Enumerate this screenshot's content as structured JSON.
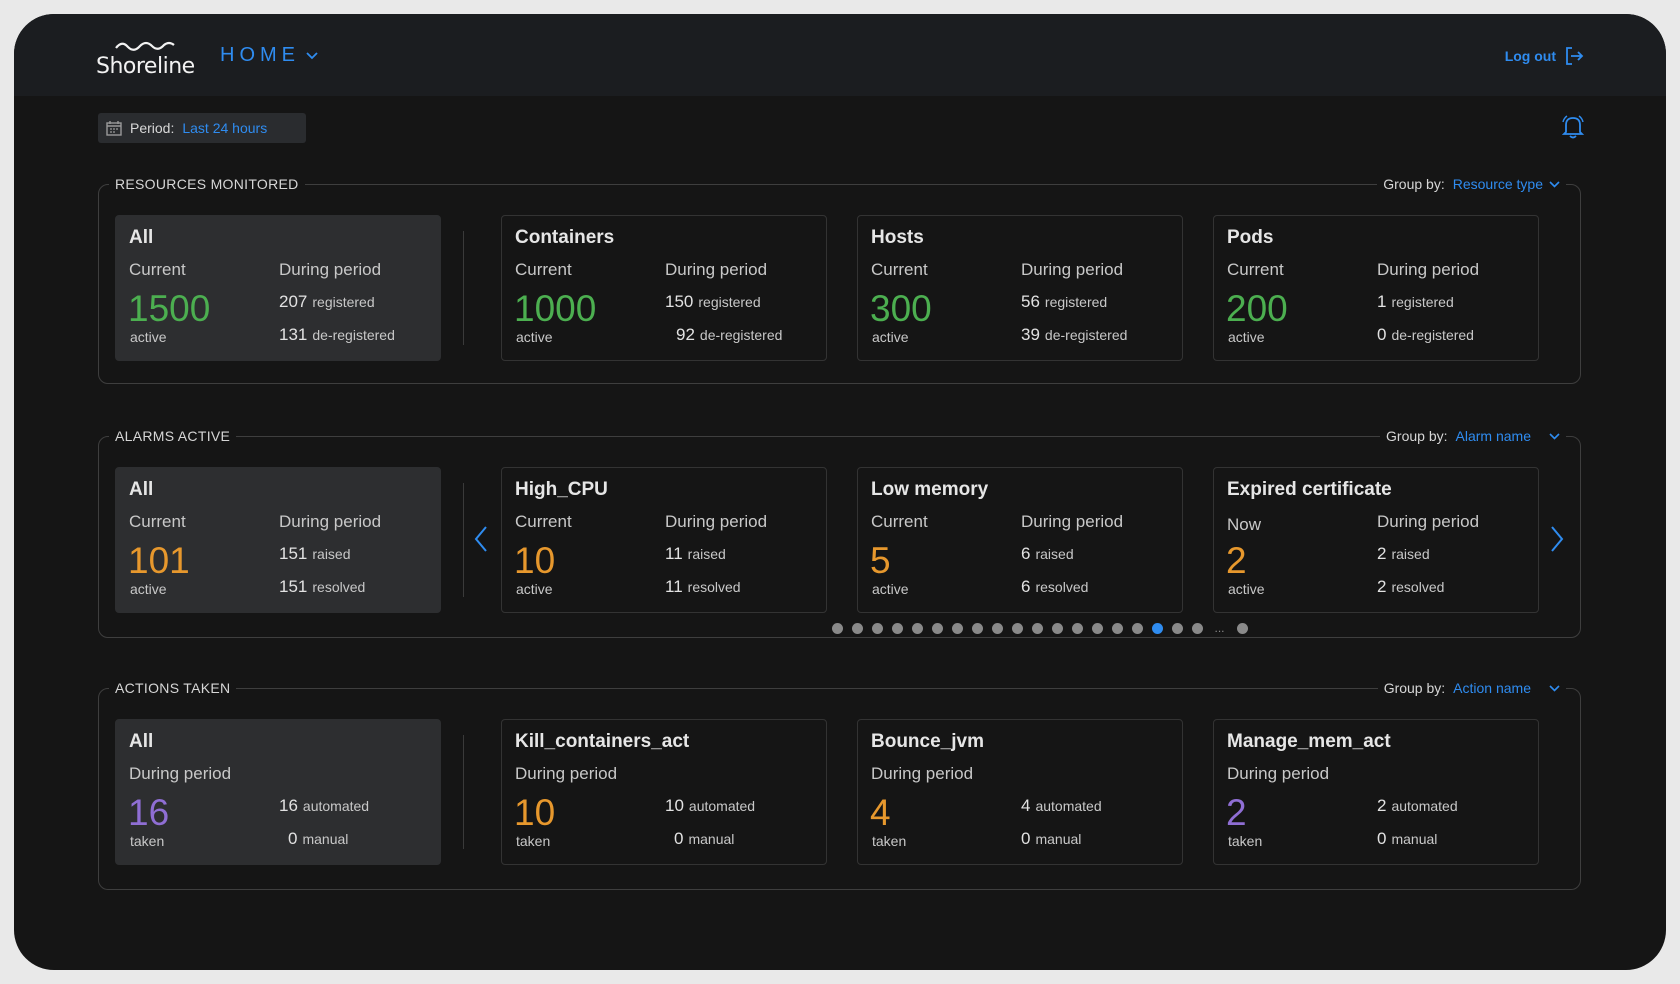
{
  "app": {
    "logo_text": "Shoreline",
    "nav_menu": "HOME",
    "logout_label": "Log out"
  },
  "period": {
    "label": "Period:",
    "value": "Last 24 hours"
  },
  "colors": {
    "accent": "#2f8cf0",
    "resource_value": "#4caf50",
    "alarm_value": "#e7982d",
    "action_purple": "#8f6ed4",
    "action_orange": "#e7982d"
  },
  "resources": {
    "title": "RESOURCES MONITORED",
    "group_label": "Group by:",
    "group_value": "Resource type",
    "cards": [
      {
        "title": "All",
        "current_label": "Current",
        "period_label": "During period",
        "value": "1500",
        "value_sub": "active",
        "n1": "207",
        "l1": "registered",
        "n2": "131",
        "l2": "de-registered"
      },
      {
        "title": "Containers",
        "current_label": "Current",
        "period_label": "During period",
        "value": "1000",
        "value_sub": "active",
        "n1": "150",
        "l1": "registered",
        "n2": "92",
        "l2": "de-registered"
      },
      {
        "title": "Hosts",
        "current_label": "Current",
        "period_label": "During period",
        "value": "300",
        "value_sub": "active",
        "n1": "56",
        "l1": "registered",
        "n2": "39",
        "l2": "de-registered"
      },
      {
        "title": "Pods",
        "current_label": "Current",
        "period_label": "During period",
        "value": "200",
        "value_sub": "active",
        "n1": "1",
        "l1": "registered",
        "n2": "0",
        "l2": "de-registered"
      }
    ]
  },
  "alarms": {
    "title": "ALARMS ACTIVE",
    "group_label": "Group by:",
    "group_value": "Alarm name",
    "cards": [
      {
        "title": "All",
        "current_label": "Current",
        "period_label": "During period",
        "value": "101",
        "value_sub": "active",
        "n1": "151",
        "l1": "raised",
        "n2": "151",
        "l2": "resolved"
      },
      {
        "title": "High_CPU",
        "current_label": "Current",
        "period_label": "During period",
        "value": "10",
        "value_sub": "active",
        "n1": "11",
        "l1": "raised",
        "n2": "11",
        "l2": "resolved"
      },
      {
        "title": "Low memory",
        "current_label": "Current",
        "period_label": "During period",
        "value": "5",
        "value_sub": "active",
        "n1": "6",
        "l1": "raised",
        "n2": "6",
        "l2": "resolved"
      },
      {
        "title": "Expired certificate",
        "current_label": "Now",
        "period_label": "During period",
        "value": "2",
        "value_sub": "active",
        "n1": "2",
        "l1": "raised",
        "n2": "2",
        "l2": "resolved"
      }
    ],
    "pagination": {
      "dots_before_ellipsis": 19,
      "active_index": 16,
      "dots_after_ellipsis": 1,
      "ellipsis": "..."
    }
  },
  "actions": {
    "title": "ACTIONS TAKEN",
    "group_label": "Group by:",
    "group_value": "Action name",
    "cards": [
      {
        "title": "All",
        "period_label": "During period",
        "value": "16",
        "value_sub": "taken",
        "n1": "16",
        "l1": "automated",
        "n2": "0",
        "l2": "manual"
      },
      {
        "title": "Kill_containers_act",
        "period_label": "During period",
        "value": "10",
        "value_sub": "taken",
        "n1": "10",
        "l1": "automated",
        "n2": "0",
        "l2": "manual"
      },
      {
        "title": "Bounce_jvm",
        "period_label": "During period",
        "value": "4",
        "value_sub": "taken",
        "n1": "4",
        "l1": "automated",
        "n2": "0",
        "l2": "manual"
      },
      {
        "title": "Manage_mem_act",
        "period_label": "During period",
        "value": "2",
        "value_sub": "taken",
        "n1": "2",
        "l1": "automated",
        "n2": "0",
        "l2": "manual"
      }
    ]
  }
}
